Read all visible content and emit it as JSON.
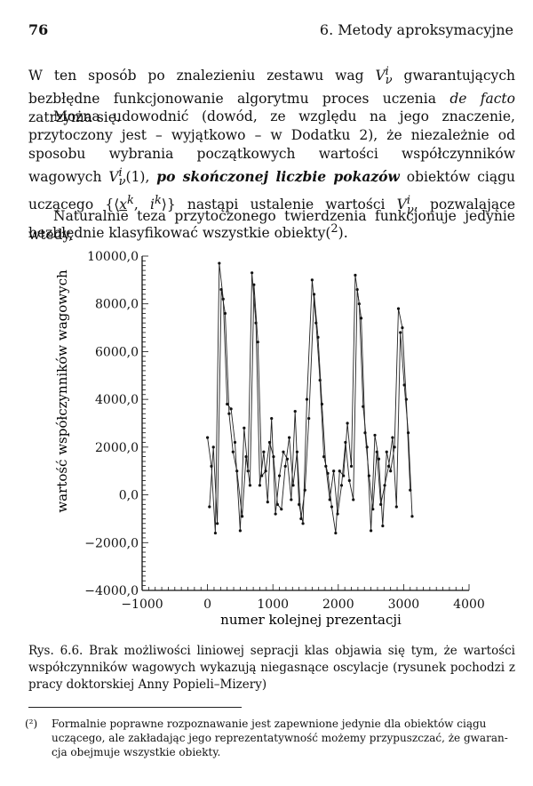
{
  "header": {
    "page_number": "76",
    "chapter": "6. Metody aproksymacyjne"
  },
  "paragraph1": {
    "t1": "W ten sposób po znalezieniu zestawu wag ",
    "var1": "V",
    "var1_sub": "ν",
    "var1_sup": "i",
    "t2": " gwarantujących bezbłędne funkcjonowanie algorytmu proces uczenia ",
    "em1": "de facto",
    "t3": " zatrzyma się."
  },
  "paragraph2": {
    "t1": "Można udowodnić (dowód, ze względu na jego znaczenie, przytoczony jest – wyjątkowo – w Dodatku 2), że niezależnie od sposobu wybrania początkowych wartości współczynników wagowych ",
    "var1": "V",
    "var1_sub": "ν",
    "var1_sup": "i",
    "t2": "(1), ",
    "em1": "po skończonej liczbie pokazów",
    "t3": " obiektów ciągu uczącego {⟨",
    "vec_x": "x",
    "vec_x_sup": "k",
    "t4": ", ",
    "i_var": "i",
    "i_sup": "k",
    "t5": "⟩} nastąpi ustalenie wartości ",
    "var2": "V",
    "var2_sub": "ν",
    "var2_sup": "i",
    "t6": ", pozwalające bezbłędnie klasyfikować wszystkie obiekty(",
    "fnref": "2",
    "t7": ")."
  },
  "paragraph3": "Naturalnie teza przytoczonego twierdzenia funkcjonuje jedynie wtedy,",
  "chart_data": {
    "type": "line",
    "title": "",
    "xlabel": "numer kolejnej prezentacji",
    "ylabel": "wartość współczynników wagowych",
    "xlim": [
      -1000,
      4000
    ],
    "ylim": [
      -4000,
      10000
    ],
    "x_ticks": [
      -1000,
      0,
      1000,
      2000,
      3000,
      4000
    ],
    "x_tick_labels": [
      "−1000",
      "0",
      "1000",
      "2000",
      "3000",
      "4000"
    ],
    "y_ticks": [
      -4000,
      -2000,
      0,
      2000,
      4000,
      6000,
      8000,
      10000
    ],
    "y_tick_labels": [
      "−4000,0",
      "−2000,0",
      "0,0",
      "2000,0",
      "4000,0",
      "6000,0",
      "8000,0",
      "10000,0"
    ],
    "grid": false,
    "series": [
      {
        "x": [
          0,
          60,
          120,
          180,
          240,
          300,
          360,
          420,
          500,
          560,
          620,
          680,
          740,
          800,
          860,
          920,
          980,
          1040,
          1100,
          1160,
          1220,
          1280,
          1340,
          1400,
          1460,
          1520,
          1600,
          1660,
          1720,
          1780,
          1840,
          1900,
          1960,
          2020,
          2080,
          2140,
          2200,
          2260,
          2320,
          2380,
          2440,
          2500,
          2560,
          2620,
          2680,
          2740,
          2800,
          2860,
          2920,
          2980,
          3040,
          3100
        ],
        "y": [
          2400,
          1200,
          -1600,
          9700,
          8200,
          3800,
          3600,
          2200,
          -1500,
          2800,
          1000,
          9300,
          7200,
          400,
          1800,
          -300,
          3200,
          -800,
          800,
          1800,
          1500,
          -200,
          3500,
          -400,
          -1200,
          4000,
          9000,
          7200,
          4800,
          1600,
          900,
          -500,
          -1600,
          1000,
          800,
          3000,
          1200,
          9200,
          8000,
          3700,
          2000,
          -1500,
          2500,
          1500,
          -1300,
          1800,
          1000,
          2000,
          7800,
          7000,
          4000,
          200
        ]
      },
      {
        "x": [
          30,
          90,
          150,
          210,
          270,
          330,
          390,
          450,
          530,
          590,
          650,
          710,
          770,
          830,
          890,
          950,
          1010,
          1070,
          1130,
          1190,
          1250,
          1310,
          1370,
          1430,
          1490,
          1550,
          1630,
          1690,
          1750,
          1810,
          1870,
          1930,
          1990,
          2050,
          2110,
          2170,
          2230,
          2290,
          2350,
          2410,
          2470,
          2530,
          2590,
          2650,
          2710,
          2770,
          2830,
          2890,
          2950,
          3010,
          3070,
          3130
        ],
        "y": [
          -500,
          2000,
          -1200,
          8600,
          7600,
          3400,
          1800,
          1000,
          -900,
          1600,
          400,
          8800,
          6400,
          800,
          1000,
          2200,
          1600,
          -400,
          -600,
          1200,
          2400,
          400,
          1800,
          -1000,
          200,
          3200,
          8400,
          6600,
          3800,
          1200,
          -200,
          1000,
          -800,
          400,
          2200,
          600,
          -200,
          8600,
          7400,
          2600,
          800,
          -600,
          1800,
          -400,
          400,
          1200,
          2400,
          -500,
          6800,
          4600,
          2600,
          -900
        ]
      }
    ]
  },
  "caption": "Rys. 6.6. Brak możliwości liniowej sepracji klas objawia się tym, że wartości współczynników wagowych wykazują niegasnące oscylacje (rysunek pochodzi z pracy doktorskiej Anny Popieli–Mizery)",
  "footnote": {
    "marker": "(²)",
    "text1": "Formalnie poprawne rozpoznawanie jest zapewnione jedynie dla obiektów ciągu",
    "text2": "uczącego, ale zakładając jego reprezentatywność możemy przypuszczać, że gwaran-",
    "text3": "cja obejmuje wszystkie obiekty."
  }
}
